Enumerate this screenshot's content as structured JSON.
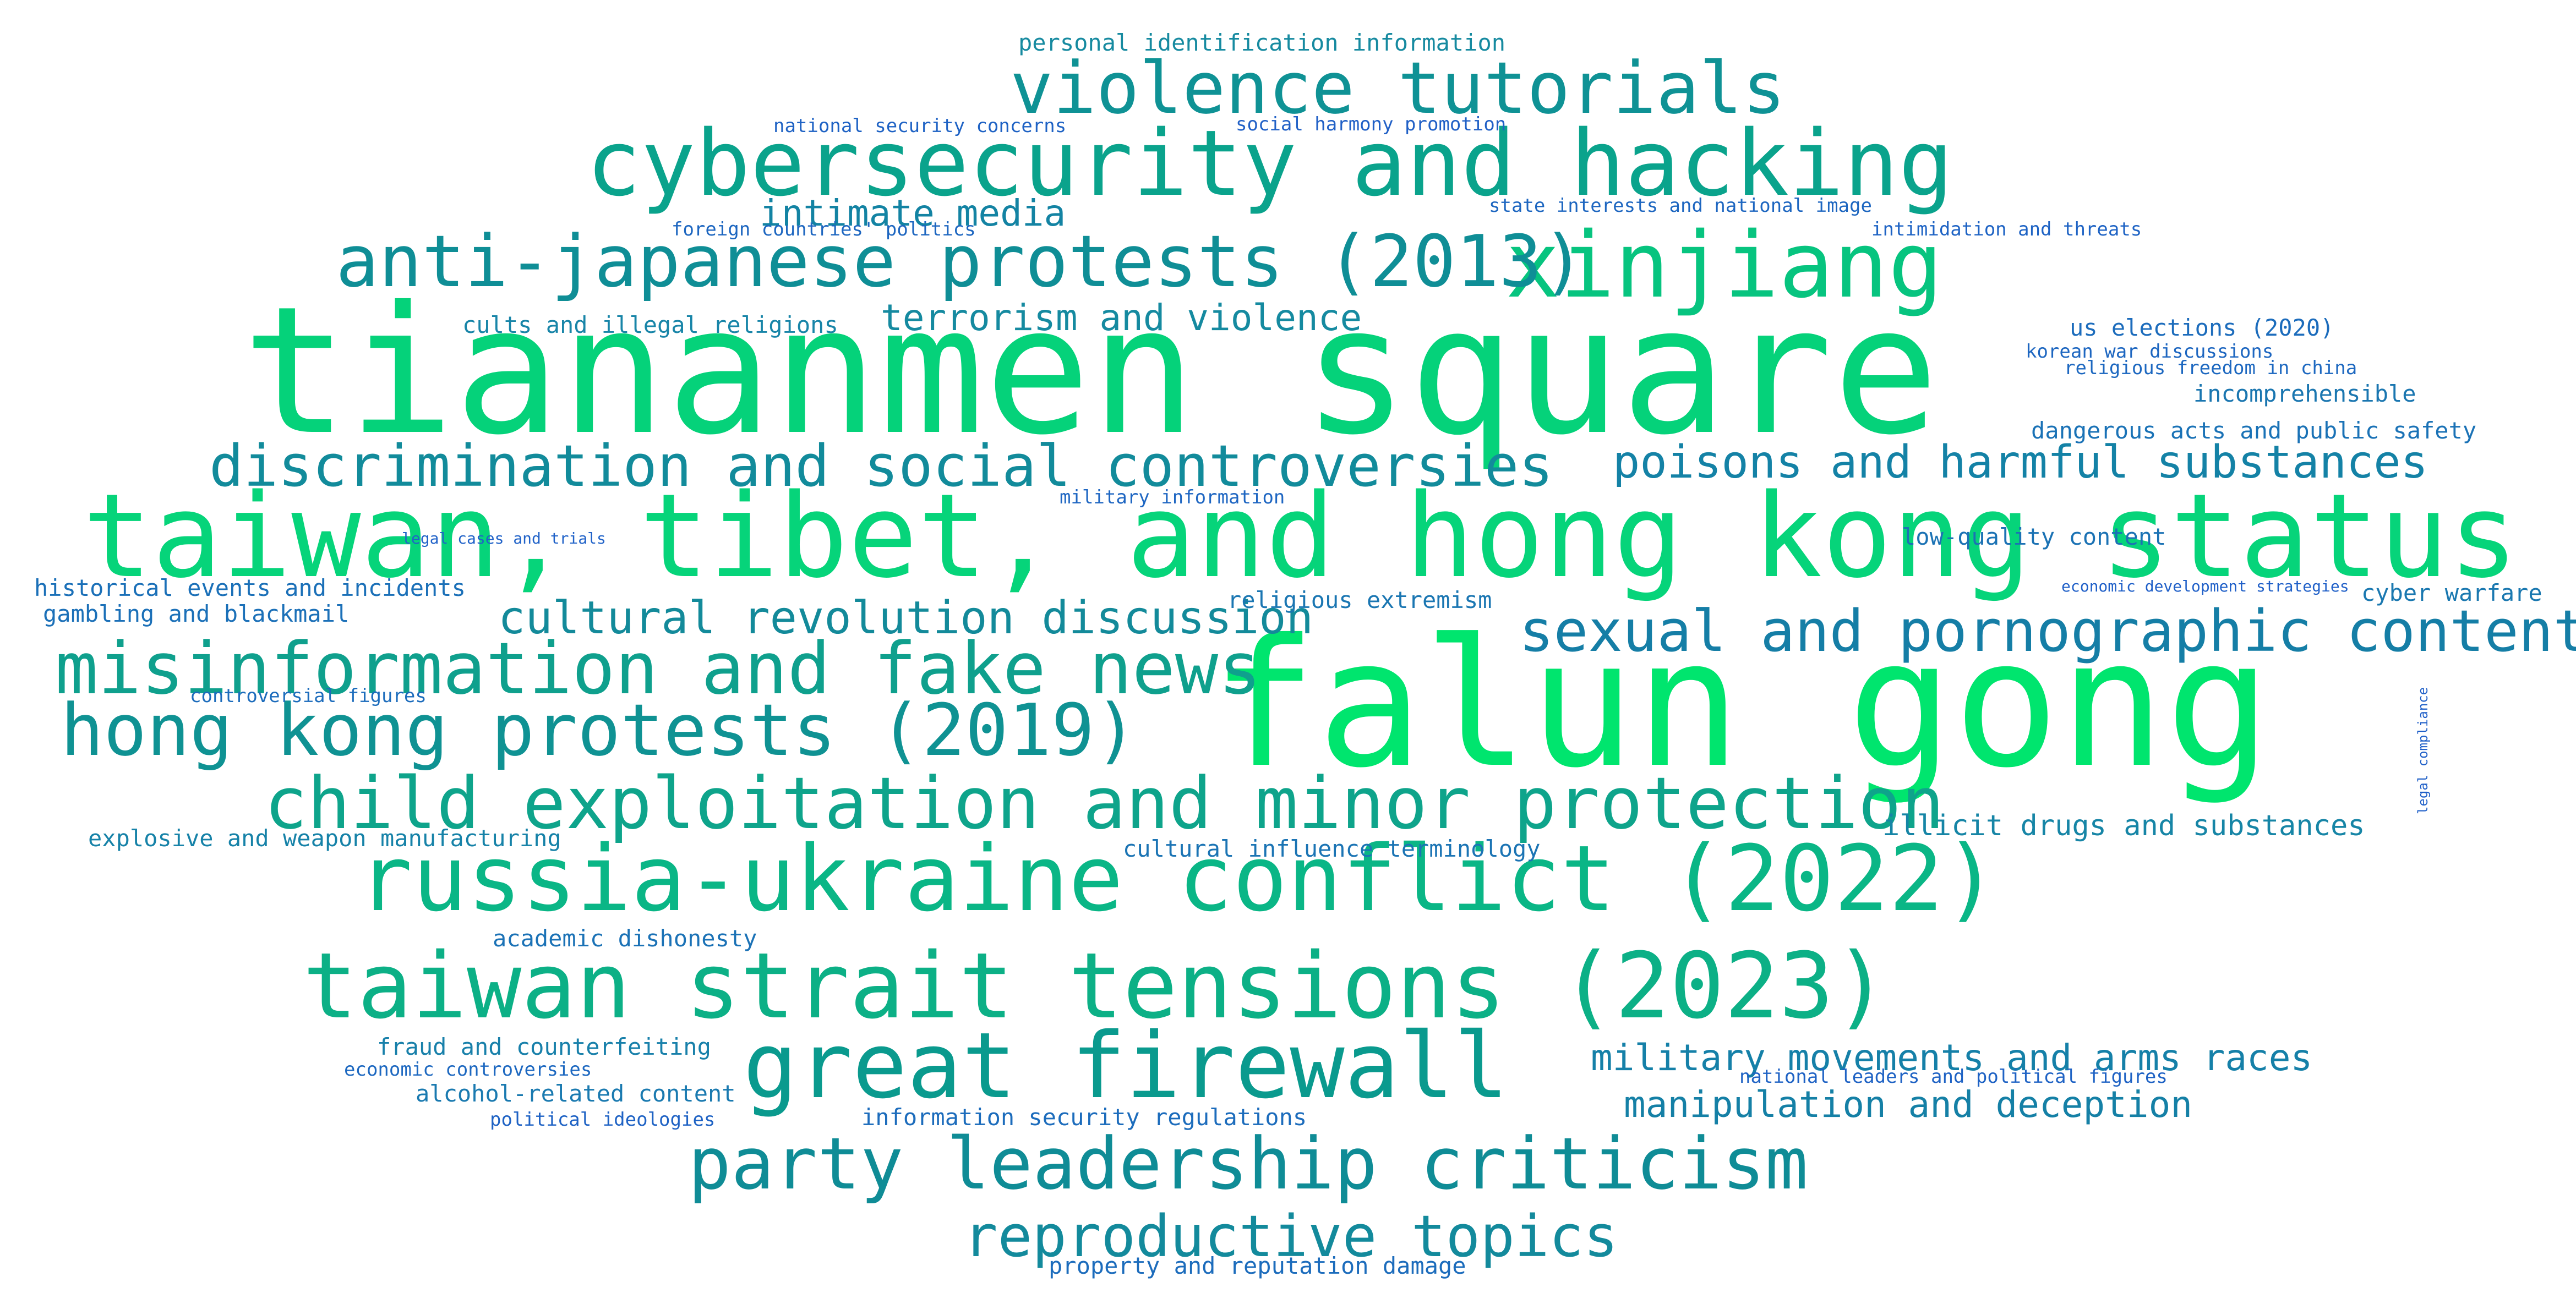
{
  "palette": {
    "bright": "#00e56e",
    "green": "#05d27a",
    "mint": "#12c27f",
    "teal": "#0aa98a",
    "teal_dark": "#0a9a8e",
    "cyan": "#108d99",
    "cyan_blue": "#1482a6",
    "blue": "#196fb8",
    "blue_light": "#2062c8"
  },
  "words": [
    {
      "text": "tiananmen square",
      "color": "#05d27a"
    },
    {
      "text": "falun gong",
      "color": "#00e56e"
    },
    {
      "text": "taiwan, tibet, and hong kong status",
      "color": "#06d47a"
    },
    {
      "text": "cybersecurity and hacking",
      "color": "#0aa38c"
    },
    {
      "text": "xinjiang",
      "color": "#07c47f"
    },
    {
      "text": "russia-ukraine conflict (2022)",
      "color": "#0ab686"
    },
    {
      "text": "taiwan strait tensions (2023)",
      "color": "#0cb086"
    },
    {
      "text": "great firewall",
      "color": "#0a9a8e"
    },
    {
      "text": "violence tutorials",
      "color": "#0f9295"
    },
    {
      "text": "anti-japanese protests (2013)",
      "color": "#0f8e96"
    },
    {
      "text": "discrimination and social controversies",
      "color": "#128b9b"
    },
    {
      "text": "misinformation and fake news",
      "color": "#0fa08d"
    },
    {
      "text": "hong kong protests (2019)",
      "color": "#0f9293"
    },
    {
      "text": "child exploitation and minor protection",
      "color": "#0ea48b"
    },
    {
      "text": "party leadership criticism",
      "color": "#0f8c96"
    },
    {
      "text": "reproductive topics",
      "color": "#138a9c"
    },
    {
      "text": "sexual and pornographic content",
      "color": "#157ea6"
    },
    {
      "text": "poisons and harmful substances",
      "color": "#1482a6"
    },
    {
      "text": "cultural revolution discussion",
      "color": "#138a9a"
    },
    {
      "text": "terrorism and violence",
      "color": "#158aa0"
    },
    {
      "text": "intimate media",
      "color": "#1383a3"
    },
    {
      "text": "military movements and arms races",
      "color": "#1580a8"
    },
    {
      "text": "manipulation and deception",
      "color": "#1580a6"
    },
    {
      "text": "illicit drugs and substances",
      "color": "#1685a6"
    },
    {
      "text": "personal identification information",
      "color": "#168aa0"
    },
    {
      "text": "national security concerns",
      "color": "#1e62c4"
    },
    {
      "text": "social harmony promotion",
      "color": "#2060c6"
    },
    {
      "text": "state interests and national image",
      "color": "#1d66c0"
    },
    {
      "text": "foreign countries' politics",
      "color": "#1d66c0"
    },
    {
      "text": "intimidation and threats",
      "color": "#1e63c4"
    },
    {
      "text": "cults and illegal religions",
      "color": "#1885a8"
    },
    {
      "text": "us elections (2020)",
      "color": "#1c6cbc"
    },
    {
      "text": "korean war discussions",
      "color": "#1d66c0"
    },
    {
      "text": "religious freedom in china",
      "color": "#1d68c0"
    },
    {
      "text": "incomprehensible",
      "color": "#1a76b0"
    },
    {
      "text": "dangerous acts and public safety",
      "color": "#1a72b6"
    },
    {
      "text": "low-quality content",
      "color": "#1b72b4"
    },
    {
      "text": "military information",
      "color": "#1e66c2"
    },
    {
      "text": "legal cases and trials",
      "color": "#2062c8"
    },
    {
      "text": "historical events and incidents",
      "color": "#1b70b8"
    },
    {
      "text": "gambling and blackmail",
      "color": "#1b70b8"
    },
    {
      "text": "religious extremism",
      "color": "#1a76b2"
    },
    {
      "text": "economic development strategies",
      "color": "#2060c8"
    },
    {
      "text": "cyber warfare",
      "color": "#1a78b0"
    },
    {
      "text": "controversial figures",
      "color": "#1c6cbc"
    },
    {
      "text": "legal compliance",
      "color": "#2060c8"
    },
    {
      "text": "explosive and weapon manufacturing",
      "color": "#1682a8"
    },
    {
      "text": "cultural influence terminology",
      "color": "#1b74b4"
    },
    {
      "text": "academic dishonesty",
      "color": "#1b72b6"
    },
    {
      "text": "fraud and counterfeiting",
      "color": "#1880aa"
    },
    {
      "text": "economic controversies",
      "color": "#1d68c0"
    },
    {
      "text": "alcohol-related content",
      "color": "#1a7ab0"
    },
    {
      "text": "national leaders and political figures",
      "color": "#1e62c4"
    },
    {
      "text": "political ideologies",
      "color": "#1e62c4"
    },
    {
      "text": "information security regulations",
      "color": "#1c6cbc"
    },
    {
      "text": "property and reputation damage",
      "color": "#1c6cbc"
    }
  ]
}
